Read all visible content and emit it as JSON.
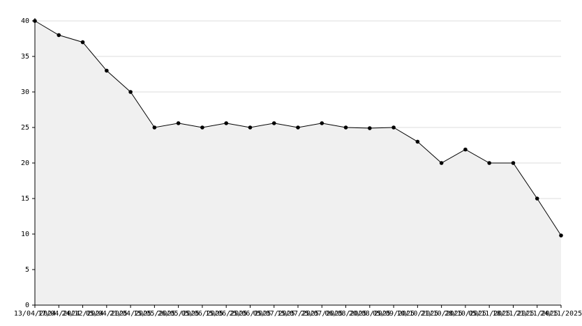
{
  "chart_data": {
    "type": "area",
    "categories": [
      "13/04/2024",
      "17/04/2024",
      "24/12/2024",
      "05/04/2025",
      "21/04/2025",
      "15/05/2025",
      "26/05/2025",
      "05/06/2025",
      "15/06/2025",
      "25/06/2025",
      "05/07/2025",
      "15/07/2025",
      "25/07/2025",
      "06/08/2025",
      "20/08/2025",
      "05/09/2025",
      "10/10/2025",
      "21/10/2025",
      "28/10/2025",
      "05/11/2025",
      "18/11/2025",
      "21/11/2025",
      "24/11/2025"
    ],
    "values": [
      40,
      38,
      37,
      33,
      30,
      25,
      25.6,
      25,
      25.6,
      25,
      25.6,
      25,
      25.6,
      25,
      24.9,
      25,
      23,
      20,
      21.9,
      20,
      20,
      15,
      9.8
    ],
    "color": "#000000",
    "fill": "#f0f0f0",
    "ylim": [
      0,
      40
    ],
    "yticks": [
      0,
      5,
      10,
      15,
      20,
      25,
      30,
      35,
      40
    ],
    "grid": true
  }
}
